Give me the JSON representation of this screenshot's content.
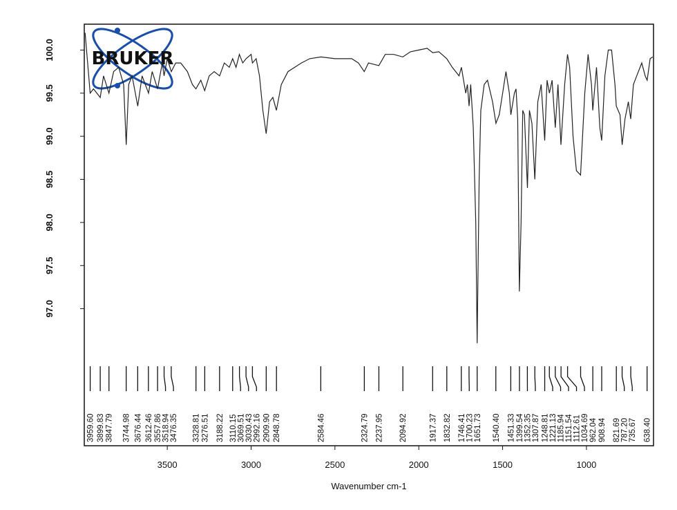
{
  "chart_data": {
    "type": "line",
    "logo": "BRUKER",
    "x_label": "Wavenumber cm-1",
    "xlim": [
      3995,
      600
    ],
    "ylim": [
      95.41,
      100.3
    ],
    "xticks": [
      3500,
      3000,
      2500,
      2000,
      1500,
      1000
    ],
    "yticks": [
      {
        "value": 97,
        "label": "97.0"
      },
      97.5,
      {
        "value": 98,
        "label": "98.0"
      },
      98.5,
      {
        "value": 99,
        "label": "99.0"
      },
      99.5,
      {
        "value": 100,
        "label": "100.0"
      }
    ],
    "color": "#222222",
    "x": [
      3990,
      3960,
      3940,
      3900,
      3880,
      3848,
      3820,
      3790,
      3760,
      3745,
      3730,
      3710,
      3676,
      3650,
      3612,
      3590,
      3558,
      3530,
      3519,
      3500,
      3476,
      3450,
      3420,
      3380,
      3350,
      3329,
      3300,
      3277,
      3250,
      3220,
      3188,
      3160,
      3130,
      3110,
      3090,
      3070,
      3050,
      3030,
      3000,
      2992,
      2970,
      2950,
      2930,
      2910,
      2890,
      2870,
      2849,
      2820,
      2780,
      2700,
      2650,
      2584,
      2500,
      2400,
      2360,
      2325,
      2300,
      2238,
      2200,
      2150,
      2095,
      2050,
      2000,
      1950,
      1917,
      1880,
      1833,
      1800,
      1760,
      1746,
      1720,
      1710,
      1700,
      1690,
      1675,
      1660,
      1652,
      1640,
      1630,
      1610,
      1590,
      1560,
      1540,
      1520,
      1500,
      1480,
      1460,
      1451,
      1430,
      1420,
      1410,
      1400,
      1390,
      1380,
      1370,
      1352,
      1340,
      1325,
      1308,
      1290,
      1270,
      1249,
      1235,
      1221,
      1205,
      1186,
      1170,
      1152,
      1130,
      1113,
      1100,
      1080,
      1060,
      1035,
      1010,
      990,
      970,
      962,
      940,
      920,
      909,
      890,
      870,
      850,
      830,
      822,
      800,
      787,
      770,
      750,
      736,
      720,
      700,
      670,
      650,
      638,
      620,
      605
    ],
    "values": [
      100.2,
      99.5,
      99.55,
      99.45,
      99.7,
      99.5,
      99.75,
      99.8,
      99.6,
      98.9,
      99.6,
      99.7,
      99.35,
      99.7,
      99.5,
      99.75,
      99.55,
      99.85,
      99.7,
      99.9,
      99.75,
      99.85,
      99.85,
      99.75,
      99.6,
      99.55,
      99.65,
      99.53,
      99.7,
      99.75,
      99.7,
      99.85,
      99.8,
      99.9,
      99.8,
      99.95,
      99.85,
      99.9,
      99.95,
      99.85,
      99.9,
      99.7,
      99.3,
      99.03,
      99.4,
      99.45,
      99.3,
      99.6,
      99.75,
      99.85,
      99.9,
      99.92,
      99.9,
      99.9,
      99.85,
      99.75,
      99.85,
      99.82,
      99.95,
      99.95,
      99.92,
      99.98,
      100.0,
      100.02,
      99.97,
      99.98,
      99.9,
      99.8,
      99.7,
      99.8,
      99.5,
      99.6,
      99.35,
      99.6,
      99.1,
      98.0,
      96.6,
      98.5,
      99.3,
      99.6,
      99.65,
      99.4,
      99.15,
      99.25,
      99.5,
      99.75,
      99.5,
      99.25,
      99.5,
      99.55,
      99.2,
      97.2,
      98.0,
      99.3,
      99.25,
      98.4,
      99.3,
      99.15,
      98.5,
      99.4,
      99.6,
      98.95,
      99.65,
      99.5,
      99.65,
      99.1,
      99.6,
      98.9,
      99.6,
      99.95,
      99.8,
      99.0,
      98.6,
      98.55,
      99.5,
      99.95,
      99.6,
      99.3,
      99.8,
      99.1,
      98.95,
      99.7,
      100.0,
      100.0,
      99.6,
      99.35,
      99.25,
      98.9,
      99.2,
      99.4,
      99.2,
      99.6,
      99.7,
      99.85,
      99.7,
      99.65,
      99.9,
      99.92
    ],
    "peaks": [
      {
        "value": 3959.6,
        "label": "3959.60"
      },
      {
        "value": 3899.83,
        "label": "3899.83"
      },
      {
        "value": 3847.79,
        "label": "3847.79"
      },
      {
        "value": 3744.98,
        "label": "3744.98"
      },
      {
        "value": 3676.44,
        "label": "3676.44"
      },
      {
        "value": 3612.46,
        "label": "3612.46"
      },
      {
        "value": 3557.86,
        "label": "3557.86"
      },
      {
        "value": 3518.94,
        "label": "3518.94"
      },
      {
        "value": 3476.35,
        "label": "3476.35"
      },
      {
        "value": 3328.81,
        "label": "3328.81"
      },
      {
        "value": 3276.51,
        "label": "3276.51"
      },
      {
        "value": 3188.22,
        "label": "3188.22"
      },
      {
        "value": 3110.15,
        "label": "3110.15"
      },
      {
        "value": 3069.51,
        "label": "3069.51"
      },
      {
        "value": 3030.43,
        "label": "3030.43"
      },
      {
        "value": 2992.16,
        "label": "2992.16"
      },
      {
        "value": 2909.9,
        "label": "2909.90"
      },
      {
        "value": 2848.78,
        "label": "2848.78"
      },
      {
        "value": 2584.46,
        "label": "2584.46"
      },
      {
        "value": 2324.79,
        "label": "2324.79"
      },
      {
        "value": 2237.95,
        "label": "2237.95"
      },
      {
        "value": 2094.92,
        "label": "2094.92"
      },
      {
        "value": 1917.37,
        "label": "1917.37"
      },
      {
        "value": 1832.82,
        "label": "1832.82"
      },
      {
        "value": 1746.41,
        "label": "1746.41"
      },
      {
        "value": 1700.23,
        "label": "1700.23"
      },
      {
        "value": 1651.73,
        "label": "1651.73"
      },
      {
        "value": 1540.4,
        "label": "1540.40"
      },
      {
        "value": 1451.33,
        "label": "1451.33"
      },
      {
        "value": 1399.54,
        "label": "1399.54"
      },
      {
        "value": 1352.35,
        "label": "1352.35"
      },
      {
        "value": 1307.87,
        "label": "1307.87"
      },
      {
        "value": 1248.81,
        "label": "1248.81"
      },
      {
        "value": 1221.13,
        "label": "1221.13"
      },
      {
        "value": 1185.94,
        "label": "1185.94"
      },
      {
        "value": 1151.54,
        "label": "1151.54"
      },
      {
        "value": 1112.61,
        "label": "1112.61"
      },
      {
        "value": 1034.69,
        "label": "1034.69"
      },
      {
        "value": 962.04,
        "label": "962.04"
      },
      {
        "value": 908.94,
        "label": "908.94"
      },
      {
        "value": 821.69,
        "label": "821.69"
      },
      {
        "value": 787.2,
        "label": "787.20"
      },
      {
        "value": 735.67,
        "label": "735.67"
      },
      {
        "value": 638.4,
        "label": "638.40"
      }
    ]
  }
}
